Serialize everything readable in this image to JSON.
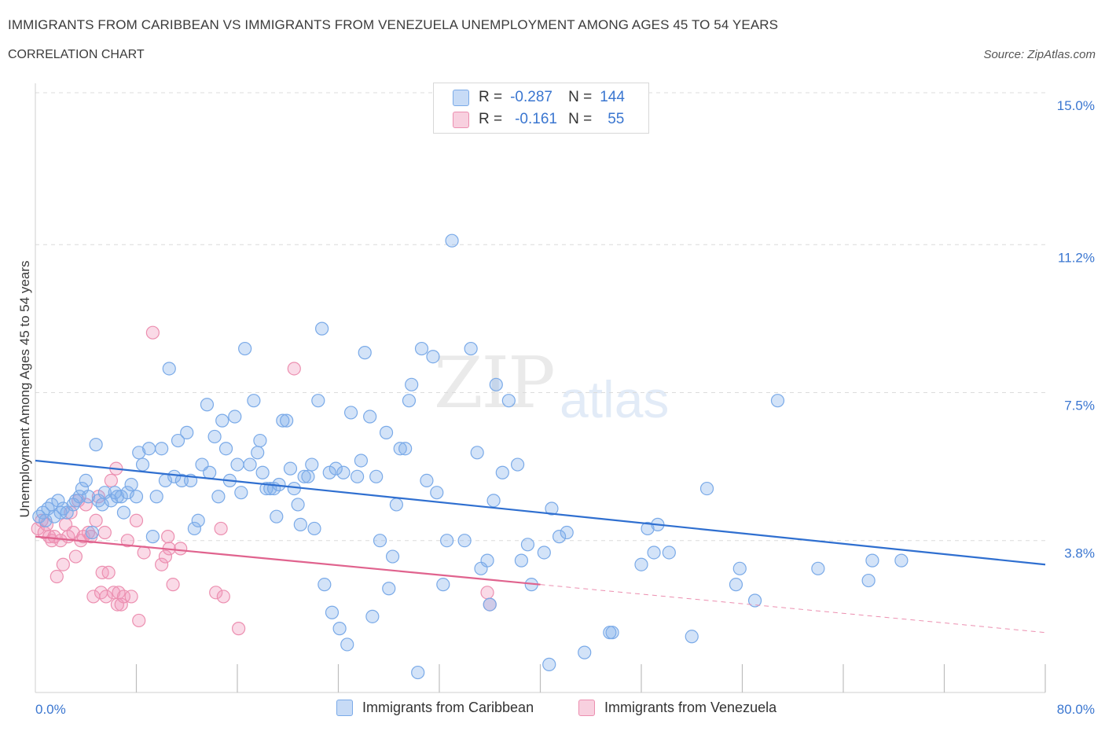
{
  "title": "IMMIGRANTS FROM CARIBBEAN VS IMMIGRANTS FROM VENEZUELA UNEMPLOYMENT AMONG AGES 45 TO 54 YEARS",
  "subtitle": "CORRELATION CHART",
  "source": "Source: ZipAtlas.com",
  "watermark": {
    "zip": "ZIP",
    "atlas": "atlas"
  },
  "colors": {
    "blue": "#7aaae8",
    "blue_fill": "rgba(130,175,235,0.35)",
    "blue_line": "#2f6fd0",
    "pink": "#ec8fb0",
    "pink_fill": "rgba(240,150,185,0.35)",
    "pink_line": "#e0638e",
    "grid": "#dcdcdc",
    "axis_text": "#3a76d0"
  },
  "legend": {
    "series": [
      {
        "r_label": "R =",
        "r_value": "-0.287",
        "n_label": "N =",
        "n_value": "144"
      },
      {
        "r_label": "R =",
        "r_value": "-0.161",
        "n_label": "N =",
        "n_value": "55"
      }
    ]
  },
  "chart_data": {
    "type": "scatter",
    "title": "IMMIGRANTS FROM CARIBBEAN VS IMMIGRANTS FROM VENEZUELA UNEMPLOYMENT AMONG AGES 45 TO 54 YEARS",
    "xlabel": "",
    "ylabel": "Unemployment Among Ages 45 to 54 years",
    "xlim": [
      0,
      80
    ],
    "ylim": [
      0,
      15
    ],
    "x_tick_labels": [
      "0.0%",
      "80.0%"
    ],
    "y_tick_labels": [
      "15.0%",
      "11.2%",
      "7.5%",
      "3.8%"
    ],
    "y_tick_values": [
      15.0,
      11.2,
      7.5,
      3.8
    ],
    "series": [
      {
        "name": "Immigrants from Caribbean",
        "trend": {
          "x": [
            0,
            80
          ],
          "y": [
            5.8,
            3.2
          ]
        },
        "points": [
          [
            0.3,
            4.4
          ],
          [
            0.6,
            4.5
          ],
          [
            0.8,
            4.3
          ],
          [
            1.0,
            4.6
          ],
          [
            1.3,
            4.7
          ],
          [
            1.5,
            4.4
          ],
          [
            1.8,
            4.8
          ],
          [
            2.0,
            4.5
          ],
          [
            2.2,
            4.6
          ],
          [
            2.5,
            4.5
          ],
          [
            3.0,
            4.7
          ],
          [
            3.2,
            4.8
          ],
          [
            3.5,
            4.9
          ],
          [
            3.7,
            5.1
          ],
          [
            4.0,
            5.3
          ],
          [
            4.2,
            4.9
          ],
          [
            4.5,
            4.0
          ],
          [
            4.8,
            6.2
          ],
          [
            5.0,
            4.8
          ],
          [
            5.3,
            4.7
          ],
          [
            5.5,
            5.0
          ],
          [
            6.0,
            4.8
          ],
          [
            6.3,
            5.0
          ],
          [
            6.5,
            4.9
          ],
          [
            6.8,
            4.9
          ],
          [
            7.0,
            4.5
          ],
          [
            7.3,
            5.0
          ],
          [
            7.6,
            5.2
          ],
          [
            8.0,
            4.9
          ],
          [
            8.2,
            6.0
          ],
          [
            8.5,
            5.7
          ],
          [
            9.0,
            6.1
          ],
          [
            9.3,
            3.9
          ],
          [
            9.6,
            4.9
          ],
          [
            10.0,
            6.1
          ],
          [
            10.3,
            5.3
          ],
          [
            10.6,
            8.1
          ],
          [
            11.0,
            5.4
          ],
          [
            11.3,
            6.3
          ],
          [
            11.6,
            5.3
          ],
          [
            12.0,
            6.5
          ],
          [
            12.3,
            5.3
          ],
          [
            12.6,
            4.1
          ],
          [
            12.9,
            4.3
          ],
          [
            13.2,
            5.7
          ],
          [
            13.6,
            7.2
          ],
          [
            13.8,
            5.5
          ],
          [
            14.2,
            6.4
          ],
          [
            14.5,
            4.9
          ],
          [
            14.8,
            6.8
          ],
          [
            15.1,
            6.1
          ],
          [
            15.4,
            5.3
          ],
          [
            15.8,
            6.9
          ],
          [
            16.0,
            5.7
          ],
          [
            16.3,
            5.0
          ],
          [
            16.6,
            8.6
          ],
          [
            17.0,
            5.7
          ],
          [
            17.3,
            7.3
          ],
          [
            17.6,
            6.0
          ],
          [
            17.8,
            6.3
          ],
          [
            18.0,
            5.5
          ],
          [
            18.3,
            5.1
          ],
          [
            18.6,
            5.1
          ],
          [
            18.9,
            5.1
          ],
          [
            19.1,
            4.4
          ],
          [
            19.3,
            5.2
          ],
          [
            19.6,
            6.8
          ],
          [
            19.9,
            6.8
          ],
          [
            20.2,
            5.6
          ],
          [
            20.5,
            5.1
          ],
          [
            20.8,
            4.7
          ],
          [
            21.0,
            4.2
          ],
          [
            21.3,
            5.4
          ],
          [
            21.6,
            5.4
          ],
          [
            21.9,
            5.7
          ],
          [
            22.1,
            4.1
          ],
          [
            22.4,
            7.3
          ],
          [
            22.7,
            9.1
          ],
          [
            22.9,
            2.7
          ],
          [
            23.3,
            5.5
          ],
          [
            23.5,
            2.0
          ],
          [
            23.8,
            5.6
          ],
          [
            24.1,
            1.6
          ],
          [
            24.4,
            5.5
          ],
          [
            24.7,
            1.2
          ],
          [
            25.0,
            7.0
          ],
          [
            25.5,
            5.4
          ],
          [
            25.8,
            5.8
          ],
          [
            26.1,
            8.5
          ],
          [
            26.5,
            6.9
          ],
          [
            26.7,
            1.9
          ],
          [
            27.0,
            5.4
          ],
          [
            27.3,
            3.8
          ],
          [
            27.8,
            6.5
          ],
          [
            28.0,
            2.6
          ],
          [
            28.3,
            3.4
          ],
          [
            28.6,
            4.7
          ],
          [
            28.9,
            6.1
          ],
          [
            29.3,
            6.1
          ],
          [
            29.6,
            7.3
          ],
          [
            29.8,
            7.7
          ],
          [
            30.3,
            0.5
          ],
          [
            30.6,
            8.6
          ],
          [
            31.0,
            5.3
          ],
          [
            31.5,
            8.4
          ],
          [
            31.8,
            5.0
          ],
          [
            32.3,
            2.7
          ],
          [
            32.6,
            3.8
          ],
          [
            33.0,
            11.3
          ],
          [
            34.0,
            3.8
          ],
          [
            34.5,
            8.6
          ],
          [
            35.0,
            6.0
          ],
          [
            35.3,
            3.1
          ],
          [
            35.8,
            3.3
          ],
          [
            36.0,
            2.2
          ],
          [
            36.3,
            4.8
          ],
          [
            36.5,
            7.7
          ],
          [
            37.0,
            5.5
          ],
          [
            37.5,
            7.3
          ],
          [
            38.2,
            5.7
          ],
          [
            38.5,
            3.3
          ],
          [
            39.0,
            3.7
          ],
          [
            39.3,
            2.7
          ],
          [
            40.3,
            3.5
          ],
          [
            40.7,
            0.7
          ],
          [
            40.9,
            4.6
          ],
          [
            41.5,
            3.9
          ],
          [
            42.1,
            4.0
          ],
          [
            43.5,
            1.0
          ],
          [
            45.5,
            1.5
          ],
          [
            45.7,
            1.5
          ],
          [
            48.0,
            3.2
          ],
          [
            48.5,
            4.1
          ],
          [
            49.0,
            3.5
          ],
          [
            49.3,
            4.2
          ],
          [
            50.2,
            3.5
          ],
          [
            52.0,
            1.4
          ],
          [
            53.2,
            5.1
          ],
          [
            55.5,
            2.7
          ],
          [
            55.8,
            3.1
          ],
          [
            57.0,
            2.3
          ],
          [
            58.8,
            7.3
          ],
          [
            62.0,
            3.1
          ],
          [
            66.0,
            2.8
          ],
          [
            66.3,
            3.3
          ],
          [
            68.6,
            3.3
          ]
        ]
      },
      {
        "name": "Immigrants from Venezuela",
        "trend": {
          "x": [
            0,
            40
          ],
          "y": [
            3.9,
            2.7
          ]
        },
        "trend_extension": {
          "x": [
            40,
            80
          ],
          "y": [
            2.7,
            1.5
          ]
        },
        "points": [
          [
            0.2,
            4.1
          ],
          [
            0.5,
            4.3
          ],
          [
            0.7,
            4.0
          ],
          [
            0.9,
            4.2
          ],
          [
            1.1,
            3.9
          ],
          [
            1.3,
            3.8
          ],
          [
            1.5,
            3.9
          ],
          [
            1.7,
            2.9
          ],
          [
            2.0,
            3.8
          ],
          [
            2.2,
            3.2
          ],
          [
            2.4,
            4.2
          ],
          [
            2.6,
            3.9
          ],
          [
            2.8,
            4.5
          ],
          [
            3.0,
            4.0
          ],
          [
            3.2,
            3.4
          ],
          [
            3.4,
            4.8
          ],
          [
            3.6,
            3.8
          ],
          [
            3.8,
            3.9
          ],
          [
            4.0,
            4.7
          ],
          [
            4.2,
            4.0
          ],
          [
            4.4,
            3.9
          ],
          [
            4.6,
            2.4
          ],
          [
            4.8,
            4.3
          ],
          [
            5.0,
            4.9
          ],
          [
            5.2,
            2.5
          ],
          [
            5.3,
            3.0
          ],
          [
            5.5,
            4.0
          ],
          [
            5.6,
            2.4
          ],
          [
            5.8,
            3.0
          ],
          [
            6.0,
            5.3
          ],
          [
            6.2,
            2.5
          ],
          [
            6.4,
            5.6
          ],
          [
            6.5,
            2.2
          ],
          [
            6.6,
            2.5
          ],
          [
            6.8,
            2.2
          ],
          [
            7.0,
            2.4
          ],
          [
            7.3,
            3.8
          ],
          [
            7.6,
            2.4
          ],
          [
            8.0,
            4.3
          ],
          [
            8.2,
            1.8
          ],
          [
            8.6,
            3.5
          ],
          [
            9.3,
            9.0
          ],
          [
            10.0,
            3.2
          ],
          [
            10.3,
            3.4
          ],
          [
            10.5,
            3.9
          ],
          [
            10.6,
            3.6
          ],
          [
            10.9,
            2.7
          ],
          [
            11.5,
            3.6
          ],
          [
            14.3,
            2.5
          ],
          [
            14.7,
            4.1
          ],
          [
            14.9,
            2.4
          ],
          [
            16.1,
            1.6
          ],
          [
            20.5,
            8.1
          ],
          [
            35.8,
            2.5
          ],
          [
            36.0,
            2.2
          ]
        ]
      }
    ]
  },
  "bottom_legend": {
    "caribbean": "Immigrants from Caribbean",
    "venezuela": "Immigrants from Venezuela"
  }
}
